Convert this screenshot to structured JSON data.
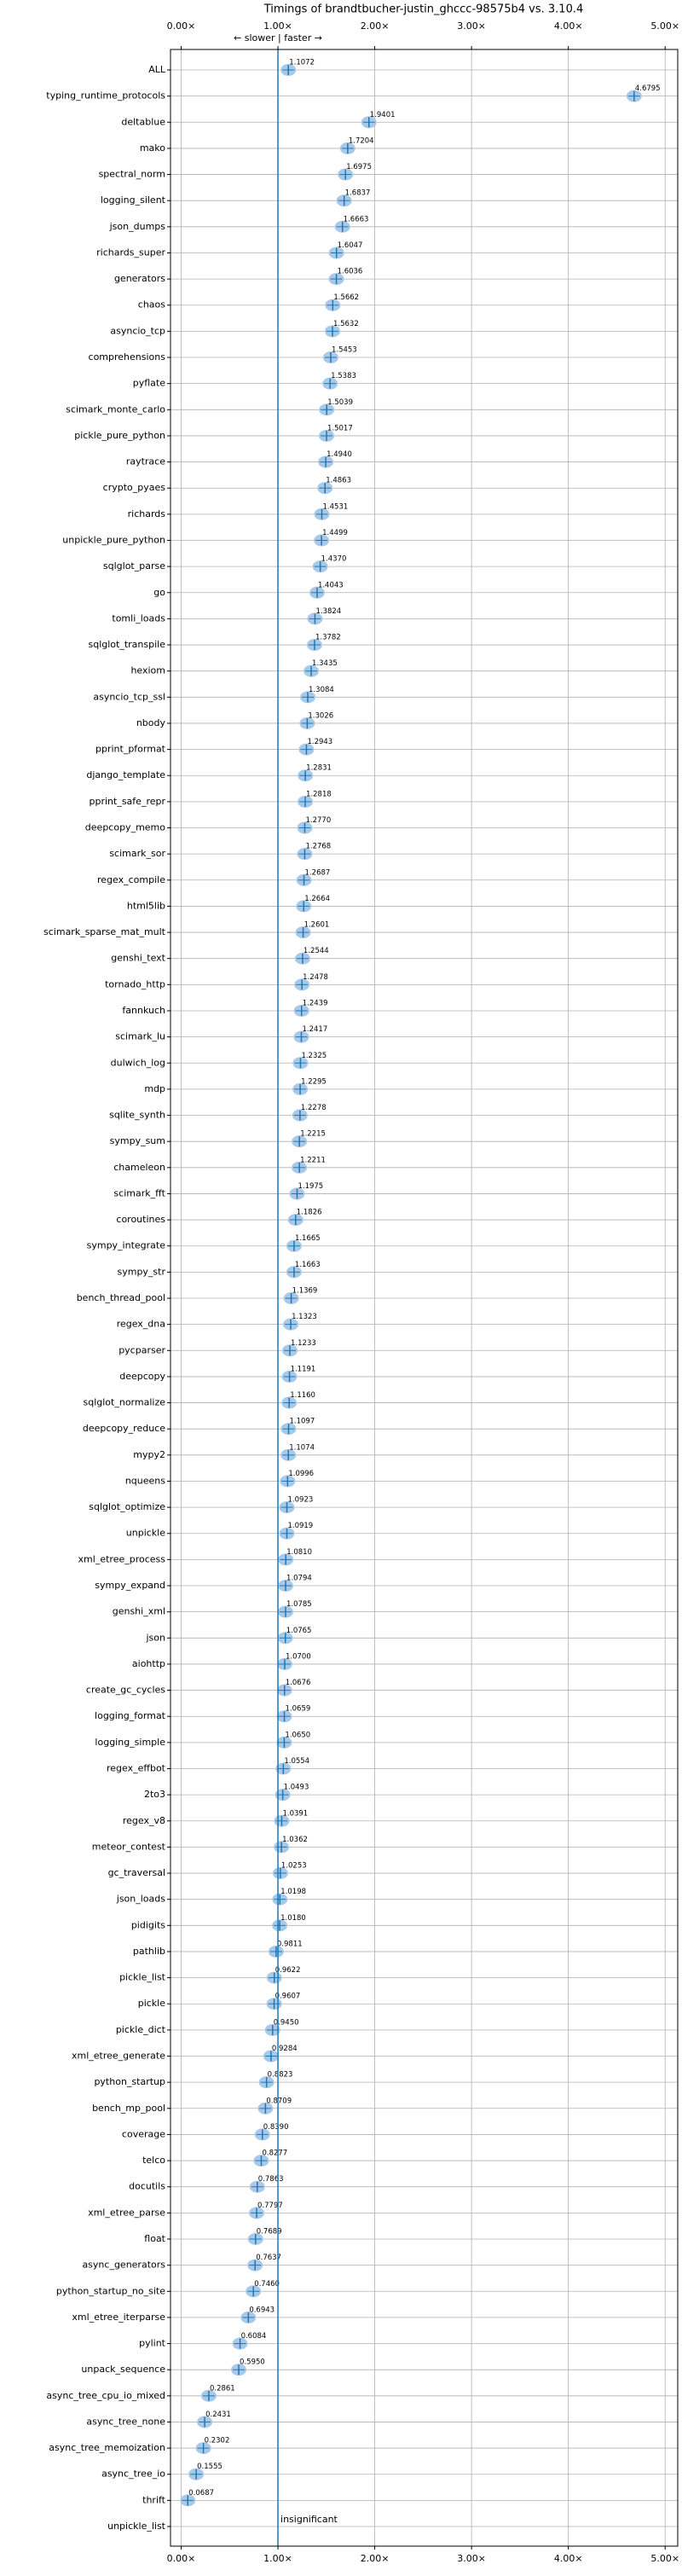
{
  "chart_data": {
    "type": "violin",
    "title": "Timings of brandtbucher-justin_ghccc-98575b4 vs. 3.10.4",
    "annotation": "← slower | faster →",
    "note": "insignificant",
    "categories": [
      "ALL",
      "typing_runtime_protocols",
      "deltablue",
      "mako",
      "spectral_norm",
      "logging_silent",
      "json_dumps",
      "richards_super",
      "generators",
      "chaos",
      "asyncio_tcp",
      "comprehensions",
      "pyflate",
      "scimark_monte_carlo",
      "pickle_pure_python",
      "raytrace",
      "crypto_pyaes",
      "richards",
      "unpickle_pure_python",
      "sqlglot_parse",
      "go",
      "tomli_loads",
      "sqlglot_transpile",
      "hexiom",
      "asyncio_tcp_ssl",
      "nbody",
      "pprint_pformat",
      "django_template",
      "pprint_safe_repr",
      "deepcopy_memo",
      "scimark_sor",
      "regex_compile",
      "html5lib",
      "scimark_sparse_mat_mult",
      "genshi_text",
      "tornado_http",
      "fannkuch",
      "scimark_lu",
      "dulwich_log",
      "mdp",
      "sqlite_synth",
      "sympy_sum",
      "chameleon",
      "scimark_fft",
      "coroutines",
      "sympy_integrate",
      "sympy_str",
      "bench_thread_pool",
      "regex_dna",
      "pycparser",
      "deepcopy",
      "sqlglot_normalize",
      "deepcopy_reduce",
      "mypy2",
      "nqueens",
      "sqlglot_optimize",
      "unpickle",
      "xml_etree_process",
      "sympy_expand",
      "genshi_xml",
      "json",
      "aiohttp",
      "create_gc_cycles",
      "logging_format",
      "logging_simple",
      "regex_effbot",
      "2to3",
      "regex_v8",
      "meteor_contest",
      "gc_traversal",
      "json_loads",
      "pidigits",
      "pathlib",
      "pickle_list",
      "pickle",
      "pickle_dict",
      "xml_etree_generate",
      "python_startup",
      "bench_mp_pool",
      "coverage",
      "telco",
      "docutils",
      "xml_etree_parse",
      "float",
      "async_generators",
      "python_startup_no_site",
      "xml_etree_iterparse",
      "pylint",
      "unpack_sequence",
      "async_tree_cpu_io_mixed",
      "async_tree_none",
      "async_tree_memoization",
      "async_tree_io",
      "thrift",
      "unpickle_list"
    ],
    "values": [
      1.1072,
      4.6795,
      1.9401,
      1.7204,
      1.6975,
      1.6837,
      1.6663,
      1.6047,
      1.6036,
      1.5662,
      1.5632,
      1.5453,
      1.5383,
      1.5039,
      1.5017,
      1.494,
      1.4863,
      1.4531,
      1.4499,
      1.437,
      1.4043,
      1.3824,
      1.3782,
      1.3435,
      1.3084,
      1.3026,
      1.2943,
      1.2831,
      1.2818,
      1.277,
      1.2768,
      1.2687,
      1.2664,
      1.2601,
      1.2544,
      1.2478,
      1.2439,
      1.2417,
      1.2325,
      1.2295,
      1.2278,
      1.2215,
      1.2211,
      1.1975,
      1.1826,
      1.1665,
      1.1663,
      1.1369,
      1.1323,
      1.1233,
      1.1191,
      1.116,
      1.1097,
      1.1074,
      1.0996,
      1.0923,
      1.0919,
      1.081,
      1.0794,
      1.0785,
      1.0765,
      1.07,
      1.0676,
      1.0659,
      1.065,
      1.0554,
      1.0493,
      1.0391,
      1.0362,
      1.0253,
      1.0198,
      1.018,
      0.9811,
      0.9622,
      0.9607,
      0.945,
      0.9284,
      0.8823,
      0.8709,
      0.839,
      0.8277,
      0.7863,
      0.7797,
      0.7689,
      0.7637,
      0.746,
      0.6943,
      0.6084,
      0.595,
      0.2861,
      0.2431,
      0.2302,
      0.1555,
      0.0687,
      null
    ],
    "value_labels": [
      "1.1072",
      "4.6795",
      "1.9401",
      "1.7204",
      "1.6975",
      "1.6837",
      "1.6663",
      "1.6047",
      "1.6036",
      "1.5662",
      "1.5632",
      "1.5453",
      "1.5383",
      "1.5039",
      "1.5017",
      "1.4940",
      "1.4863",
      "1.4531",
      "1.4499",
      "1.4370",
      "1.4043",
      "1.3824",
      "1.3782",
      "1.3435",
      "1.3084",
      "1.3026",
      "1.2943",
      "1.2831",
      "1.2818",
      "1.2770",
      "1.2768",
      "1.2687",
      "1.2664",
      "1.2601",
      "1.2544",
      "1.2478",
      "1.2439",
      "1.2417",
      "1.2325",
      "1.2295",
      "1.2278",
      "1.2215",
      "1.2211",
      "1.1975",
      "1.1826",
      "1.1665",
      "1.1663",
      "1.1369",
      "1.1323",
      "1.1233",
      "1.1191",
      "1.1160",
      "1.1097",
      "1.1074",
      "1.0996",
      "1.0923",
      "1.0919",
      "1.0810",
      "1.0794",
      "1.0785",
      "1.0765",
      "1.0700",
      "1.0676",
      "1.0659",
      "1.0650",
      "1.0554",
      "1.0493",
      "1.0391",
      "1.0362",
      "1.0253",
      "1.0198",
      "1.0180",
      "0.9811",
      "0.9622",
      "0.9607",
      "0.9450",
      "0.9284",
      "0.8823",
      "0.8709",
      "0.8390",
      "0.8277",
      "0.7863",
      "0.7797",
      "0.7689",
      "0.7637",
      "0.7460",
      "0.6943",
      "0.6084",
      "0.5950",
      "0.2861",
      "0.2431",
      "0.2302",
      "0.1555",
      "0.0687",
      null
    ],
    "color": "#1f77b4",
    "fill": "#a9c9e8",
    "reference_line": 1,
    "xlim": [
      -0.11,
      5.13
    ],
    "xticks": [
      {
        "value": 0,
        "label": "0.00×"
      },
      {
        "value": 1,
        "label": "1.00×"
      },
      {
        "value": 2,
        "label": "2.00×"
      },
      {
        "value": 3,
        "label": "3.00×"
      },
      {
        "value": 4,
        "label": "4.00×"
      },
      {
        "value": 5,
        "label": "5.00×"
      }
    ],
    "grid": true
  }
}
